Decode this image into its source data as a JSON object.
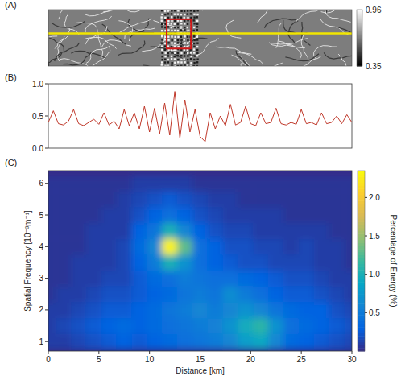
{
  "chart_data": [
    {
      "type": "image",
      "title": "(A)",
      "colorbar": {
        "range": [
          0.35,
          0.96
        ],
        "ticks": [
          0.96,
          0.35
        ]
      }
    },
    {
      "type": "line",
      "title": "(B)",
      "color": "#c0392b",
      "tick_labels": "y",
      "xlim": [
        0,
        30
      ],
      "ylim": [
        0,
        1
      ],
      "yticks": [
        {
          "value": 0,
          "label": "0.0"
        },
        {
          "value": 0.5,
          "label": "0.5"
        },
        {
          "value": 1,
          "label": "1.0"
        }
      ],
      "x": [
        0,
        0.5,
        1,
        1.5,
        2,
        2.5,
        3,
        3.5,
        4,
        4.5,
        5,
        5.5,
        6,
        6.5,
        7,
        7.5,
        8,
        8.5,
        9,
        9.5,
        10,
        10.5,
        11,
        11.5,
        12,
        12.5,
        13,
        13.5,
        14,
        14.5,
        15,
        15.5,
        16,
        16.5,
        17,
        17.5,
        18,
        18.5,
        19,
        19.5,
        20,
        20.5,
        21,
        21.5,
        22,
        22.5,
        23,
        23.5,
        24,
        24.5,
        25,
        25.5,
        26,
        26.5,
        27,
        27.5,
        28,
        28.5,
        29,
        29.5,
        30
      ],
      "values": [
        0.4,
        0.58,
        0.38,
        0.36,
        0.42,
        0.6,
        0.38,
        0.35,
        0.4,
        0.45,
        0.37,
        0.55,
        0.36,
        0.42,
        0.3,
        0.6,
        0.35,
        0.55,
        0.3,
        0.65,
        0.25,
        0.62,
        0.22,
        0.7,
        0.2,
        0.88,
        0.15,
        0.75,
        0.25,
        0.6,
        0.18,
        0.1,
        0.55,
        0.3,
        0.5,
        0.35,
        0.68,
        0.36,
        0.4,
        0.65,
        0.38,
        0.35,
        0.55,
        0.38,
        0.4,
        0.62,
        0.38,
        0.36,
        0.4,
        0.37,
        0.6,
        0.38,
        0.4,
        0.36,
        0.55,
        0.38,
        0.4,
        0.5,
        0.38,
        0.52,
        0.4
      ]
    },
    {
      "type": "heatmap",
      "title": "(C)",
      "xlabel": "Distance [km]",
      "ylabel": "Spatial Frequency [10⁻³m⁻¹]",
      "xlim": [
        0,
        30
      ],
      "ylim": [
        0.7,
        6.4
      ],
      "xticks": [
        0,
        5,
        10,
        15,
        20,
        25,
        30
      ],
      "yticks": [
        1,
        2,
        3,
        4,
        5,
        6
      ],
      "x": [
        0,
        1.5,
        3,
        4.5,
        6,
        7.5,
        9,
        10.5,
        12,
        13.5,
        15,
        16.5,
        18,
        19.5,
        21,
        22.5,
        24,
        25.5,
        27,
        28.5,
        30
      ],
      "y": [
        1,
        1.5,
        2,
        2.5,
        3,
        3.5,
        4,
        4.5,
        5,
        5.5,
        6
      ],
      "cells": [
        [
          0.1,
          0.1,
          0.15,
          0.2,
          0.25,
          0.3,
          0.25,
          0.3,
          0.35,
          0.4,
          0.45,
          0.5,
          0.6,
          0.8,
          0.9,
          0.6,
          0.35,
          0.3,
          0.25,
          0.2,
          0.15
        ],
        [
          0.1,
          0.15,
          0.2,
          0.25,
          0.3,
          0.35,
          0.3,
          0.35,
          0.4,
          0.45,
          0.5,
          0.55,
          0.7,
          0.95,
          1.1,
          0.7,
          0.4,
          0.35,
          0.3,
          0.25,
          0.2
        ],
        [
          0.1,
          0.1,
          0.15,
          0.2,
          0.25,
          0.25,
          0.3,
          0.35,
          0.45,
          0.5,
          0.6,
          0.5,
          0.6,
          0.7,
          0.6,
          0.45,
          0.35,
          0.3,
          0.3,
          0.2,
          0.15
        ],
        [
          0.05,
          0.1,
          0.1,
          0.15,
          0.2,
          0.2,
          0.25,
          0.3,
          0.35,
          0.45,
          0.5,
          0.45,
          0.65,
          0.5,
          0.4,
          0.3,
          0.25,
          0.25,
          0.2,
          0.15,
          0.1
        ],
        [
          0.05,
          0.05,
          0.1,
          0.1,
          0.15,
          0.15,
          0.25,
          0.35,
          0.4,
          0.5,
          0.45,
          0.4,
          0.4,
          0.35,
          0.3,
          0.25,
          0.2,
          0.2,
          0.15,
          0.1,
          0.1
        ],
        [
          0.05,
          0.05,
          0.1,
          0.1,
          0.1,
          0.15,
          0.3,
          0.5,
          1.0,
          0.7,
          0.4,
          0.3,
          0.25,
          0.2,
          0.2,
          0.15,
          0.15,
          0.15,
          0.1,
          0.1,
          0.05
        ],
        [
          0.05,
          0.05,
          0.05,
          0.1,
          0.1,
          0.15,
          0.35,
          0.6,
          2.3,
          1.3,
          0.4,
          0.3,
          0.2,
          0.2,
          0.15,
          0.15,
          0.1,
          0.15,
          0.1,
          0.1,
          0.05
        ],
        [
          0.05,
          0.05,
          0.05,
          0.1,
          0.1,
          0.1,
          0.3,
          0.45,
          1.0,
          0.6,
          0.3,
          0.2,
          0.15,
          0.15,
          0.1,
          0.1,
          0.1,
          0.1,
          0.1,
          0.05,
          0.05
        ],
        [
          0.05,
          0.05,
          0.05,
          0.05,
          0.1,
          0.1,
          0.2,
          0.3,
          0.4,
          0.3,
          0.2,
          0.15,
          0.1,
          0.1,
          0.1,
          0.1,
          0.05,
          0.05,
          0.05,
          0.05,
          0.05
        ],
        [
          0.05,
          0.05,
          0.05,
          0.05,
          0.05,
          0.1,
          0.15,
          0.2,
          0.25,
          0.2,
          0.15,
          0.1,
          0.1,
          0.05,
          0.05,
          0.05,
          0.05,
          0.05,
          0.05,
          0.05,
          0.05
        ],
        [
          0.05,
          0.05,
          0.05,
          0.05,
          0.05,
          0.05,
          0.1,
          0.1,
          0.1,
          0.1,
          0.05,
          0.05,
          0.05,
          0.05,
          0.05,
          0.05,
          0.05,
          0.05,
          0.05,
          0.05,
          0.05
        ]
      ],
      "colorbar": {
        "range": [
          0,
          2.35
        ],
        "label": "Percentage of Energy (%)",
        "ticks": [
          {
            "value": 0.5,
            "label": "0.5"
          },
          {
            "value": 1,
            "label": "1.0"
          },
          {
            "value": 1.5,
            "label": "1.5"
          },
          {
            "value": 2,
            "label": "2.0"
          }
        ]
      }
    }
  ]
}
